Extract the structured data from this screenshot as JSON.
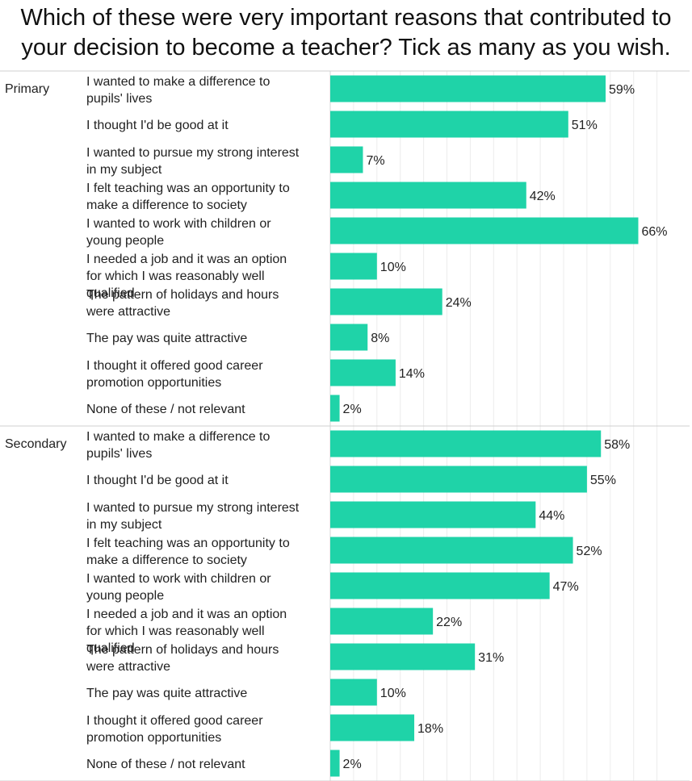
{
  "chart_data": {
    "type": "bar",
    "orientation": "horizontal",
    "title": "Which of these were very important reasons that contributed to your decision to become a teacher? Tick as many as you wish.",
    "value_suffix": "%",
    "xlim": [
      0,
      70
    ],
    "grid": true,
    "bar_color": "#1fd3a8",
    "groups": [
      {
        "name": "Primary",
        "categories": [
          "I wanted to make a difference to pupils' lives",
          "I thought I'd be good at it",
          "I wanted to pursue my strong interest in my subject",
          "I felt teaching was an opportunity to make a difference to society",
          "I wanted to work with children or young people",
          "I needed a job and it was an option for which I was reasonably well qualified",
          "The pattern of holidays and hours were attractive",
          "The pay was quite attractive",
          "I thought it offered good career promotion opportunities",
          "None of these / not relevant"
        ],
        "values": [
          59,
          51,
          7,
          42,
          66,
          10,
          24,
          8,
          14,
          2
        ]
      },
      {
        "name": "Secondary",
        "categories": [
          "I wanted to make a difference to pupils' lives",
          "I thought I'd be good at it",
          "I wanted to pursue my strong interest in my subject",
          "I felt teaching was an opportunity to make a difference to society",
          "I wanted to work with children or young people",
          "I needed a job and it was an option for which I was reasonably well qualified",
          "The pattern of holidays and hours were attractive",
          "The pay was quite attractive",
          "I thought it offered good career promotion opportunities",
          "None of these / not relevant"
        ],
        "values": [
          58,
          55,
          44,
          52,
          47,
          22,
          31,
          10,
          18,
          2
        ]
      }
    ]
  }
}
